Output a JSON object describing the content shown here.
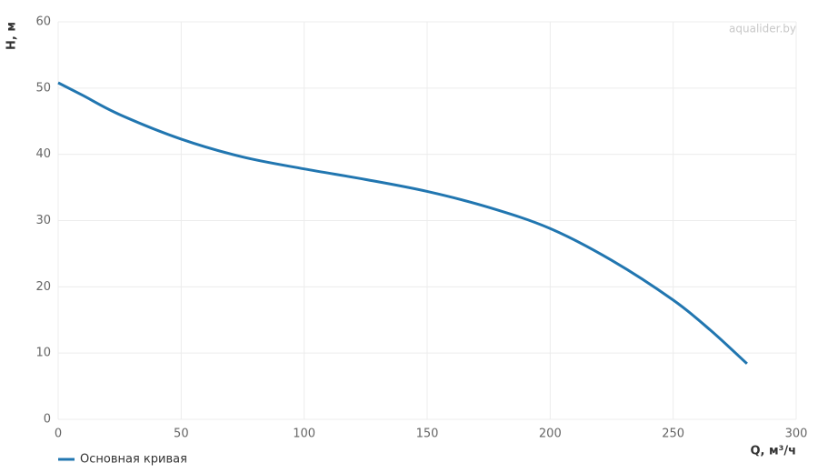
{
  "chart_data": {
    "type": "line",
    "watermark": "aqualider.by",
    "x_label": "Q, м³/ч",
    "y_label": "H, м",
    "x": [
      0,
      10,
      25,
      50,
      75,
      100,
      125,
      150,
      175,
      200,
      225,
      250,
      265,
      280
    ],
    "series": [
      {
        "name": "Основная кривая",
        "color": "#2176b0",
        "values": [
          50.8,
          48.9,
          46.0,
          42.3,
          39.6,
          37.8,
          36.2,
          34.4,
          32.0,
          28.8,
          24.0,
          18.0,
          13.5,
          8.4
        ]
      }
    ],
    "xlim": [
      0,
      300
    ],
    "xticks": [
      0,
      50,
      100,
      150,
      200,
      250,
      300
    ],
    "ylim": [
      0,
      60
    ],
    "yticks": [
      0,
      10,
      20,
      30,
      40,
      50,
      60
    ],
    "grid": true
  }
}
